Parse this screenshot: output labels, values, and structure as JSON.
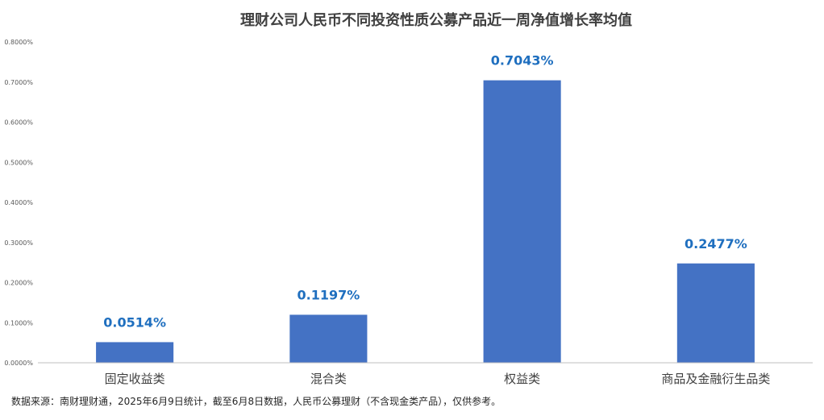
{
  "chart_data": {
    "type": "bar",
    "title": "理财公司人民币不同投资性质公募产品近一周净值增长率均值",
    "categories": [
      "固定收益类",
      "混合类",
      "权益类",
      "商品及金融衍生品类"
    ],
    "series": [
      {
        "values": [
          0.0514,
          0.1197,
          0.7043,
          0.2477
        ]
      }
    ],
    "data_labels": [
      "0.0514%",
      "0.1197%",
      "0.7043%",
      "0.2477%"
    ],
    "y_ticks": [
      0,
      0.1,
      0.2,
      0.3,
      0.4,
      0.5,
      0.6,
      0.7,
      0.8
    ],
    "y_tick_labels": [
      "0.0000%",
      "0.1000%",
      "0.2000%",
      "0.3000%",
      "0.4000%",
      "0.5000%",
      "0.6000%",
      "0.7000%",
      "0.8000%"
    ],
    "ylim": [
      0,
      0.8
    ],
    "xlabel": "",
    "ylabel": "",
    "grid": false,
    "legend": "none",
    "bar_color": "#4472C4",
    "label_color": "#1F6FBF",
    "source_note": "数据来源：南财理财通，2025年6月9日统计，截至6月8日数据，人民币公募理财（不含现金类产品），仅供参考。"
  }
}
